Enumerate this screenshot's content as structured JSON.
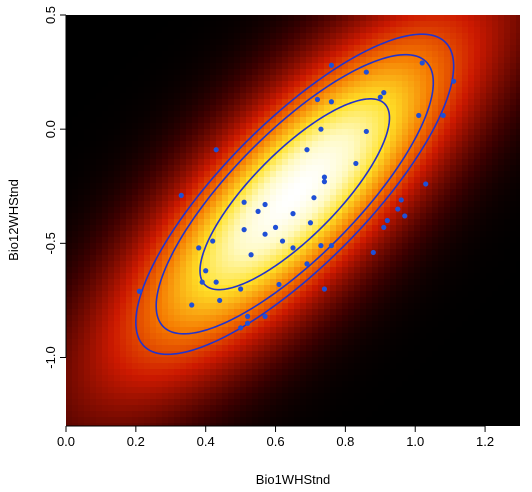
{
  "chart_data": {
    "type": "scatter",
    "title": "",
    "xlabel": "Bio1WHStnd",
    "ylabel": "Bio12WHStnd",
    "xlim": [
      0.0,
      1.3
    ],
    "ylim": [
      -1.3,
      0.5
    ],
    "xticks": [
      "0.0",
      "0.2",
      "0.4",
      "0.6",
      "0.8",
      "1.0",
      "1.2"
    ],
    "yticks": [
      "-1.0",
      "-0.5",
      "0.0",
      "0.5"
    ],
    "background": "bivariate normal density heat map (black → red → yellow → white)",
    "contour_color": "#2233cc",
    "point_color": "#1f4fd6",
    "density": {
      "center": [
        0.655,
        -0.285
      ],
      "sd_x": 0.185,
      "sd_y": 0.285,
      "correlation": 0.8
    },
    "contour_levels_chi2": [
      2.15,
      4.6,
      6.05
    ],
    "points": [
      {
        "x": 0.21,
        "y": -0.71
      },
      {
        "x": 0.33,
        "y": -0.29
      },
      {
        "x": 0.36,
        "y": -0.77
      },
      {
        "x": 0.38,
        "y": -0.52
      },
      {
        "x": 0.39,
        "y": -0.67
      },
      {
        "x": 0.4,
        "y": -0.62
      },
      {
        "x": 0.42,
        "y": -0.49
      },
      {
        "x": 0.43,
        "y": -0.67
      },
      {
        "x": 0.43,
        "y": -0.09
      },
      {
        "x": 0.44,
        "y": -0.75
      },
      {
        "x": 0.5,
        "y": -0.87
      },
      {
        "x": 0.5,
        "y": -0.7
      },
      {
        "x": 0.51,
        "y": -0.44
      },
      {
        "x": 0.51,
        "y": -0.32
      },
      {
        "x": 0.52,
        "y": -0.82
      },
      {
        "x": 0.52,
        "y": -0.85
      },
      {
        "x": 0.53,
        "y": -0.55
      },
      {
        "x": 0.55,
        "y": -0.36
      },
      {
        "x": 0.57,
        "y": -0.82
      },
      {
        "x": 0.57,
        "y": -0.33
      },
      {
        "x": 0.57,
        "y": -0.46
      },
      {
        "x": 0.6,
        "y": -0.43
      },
      {
        "x": 0.61,
        "y": -0.68
      },
      {
        "x": 0.62,
        "y": -0.49
      },
      {
        "x": 0.65,
        "y": -0.37
      },
      {
        "x": 0.65,
        "y": -0.52
      },
      {
        "x": 0.69,
        "y": -0.09
      },
      {
        "x": 0.69,
        "y": -0.59
      },
      {
        "x": 0.7,
        "y": -0.41
      },
      {
        "x": 0.71,
        "y": -0.3
      },
      {
        "x": 0.72,
        "y": 0.13
      },
      {
        "x": 0.73,
        "y": 0.0
      },
      {
        "x": 0.73,
        "y": -0.51
      },
      {
        "x": 0.74,
        "y": -0.21
      },
      {
        "x": 0.74,
        "y": -0.23
      },
      {
        "x": 0.74,
        "y": -0.7
      },
      {
        "x": 0.76,
        "y": 0.28
      },
      {
        "x": 0.76,
        "y": 0.12
      },
      {
        "x": 0.76,
        "y": -0.51
      },
      {
        "x": 0.83,
        "y": -0.15
      },
      {
        "x": 0.86,
        "y": 0.25
      },
      {
        "x": 0.86,
        "y": -0.01
      },
      {
        "x": 0.88,
        "y": -0.54
      },
      {
        "x": 0.9,
        "y": 0.14
      },
      {
        "x": 0.91,
        "y": 0.16
      },
      {
        "x": 0.91,
        "y": -0.43
      },
      {
        "x": 0.92,
        "y": -0.4
      },
      {
        "x": 0.95,
        "y": -0.35
      },
      {
        "x": 0.96,
        "y": -0.31
      },
      {
        "x": 0.97,
        "y": -0.38
      },
      {
        "x": 1.01,
        "y": 0.06
      },
      {
        "x": 1.02,
        "y": 0.29
      },
      {
        "x": 1.03,
        "y": -0.24
      },
      {
        "x": 1.08,
        "y": 0.06
      },
      {
        "x": 1.11,
        "y": 0.21
      }
    ]
  }
}
